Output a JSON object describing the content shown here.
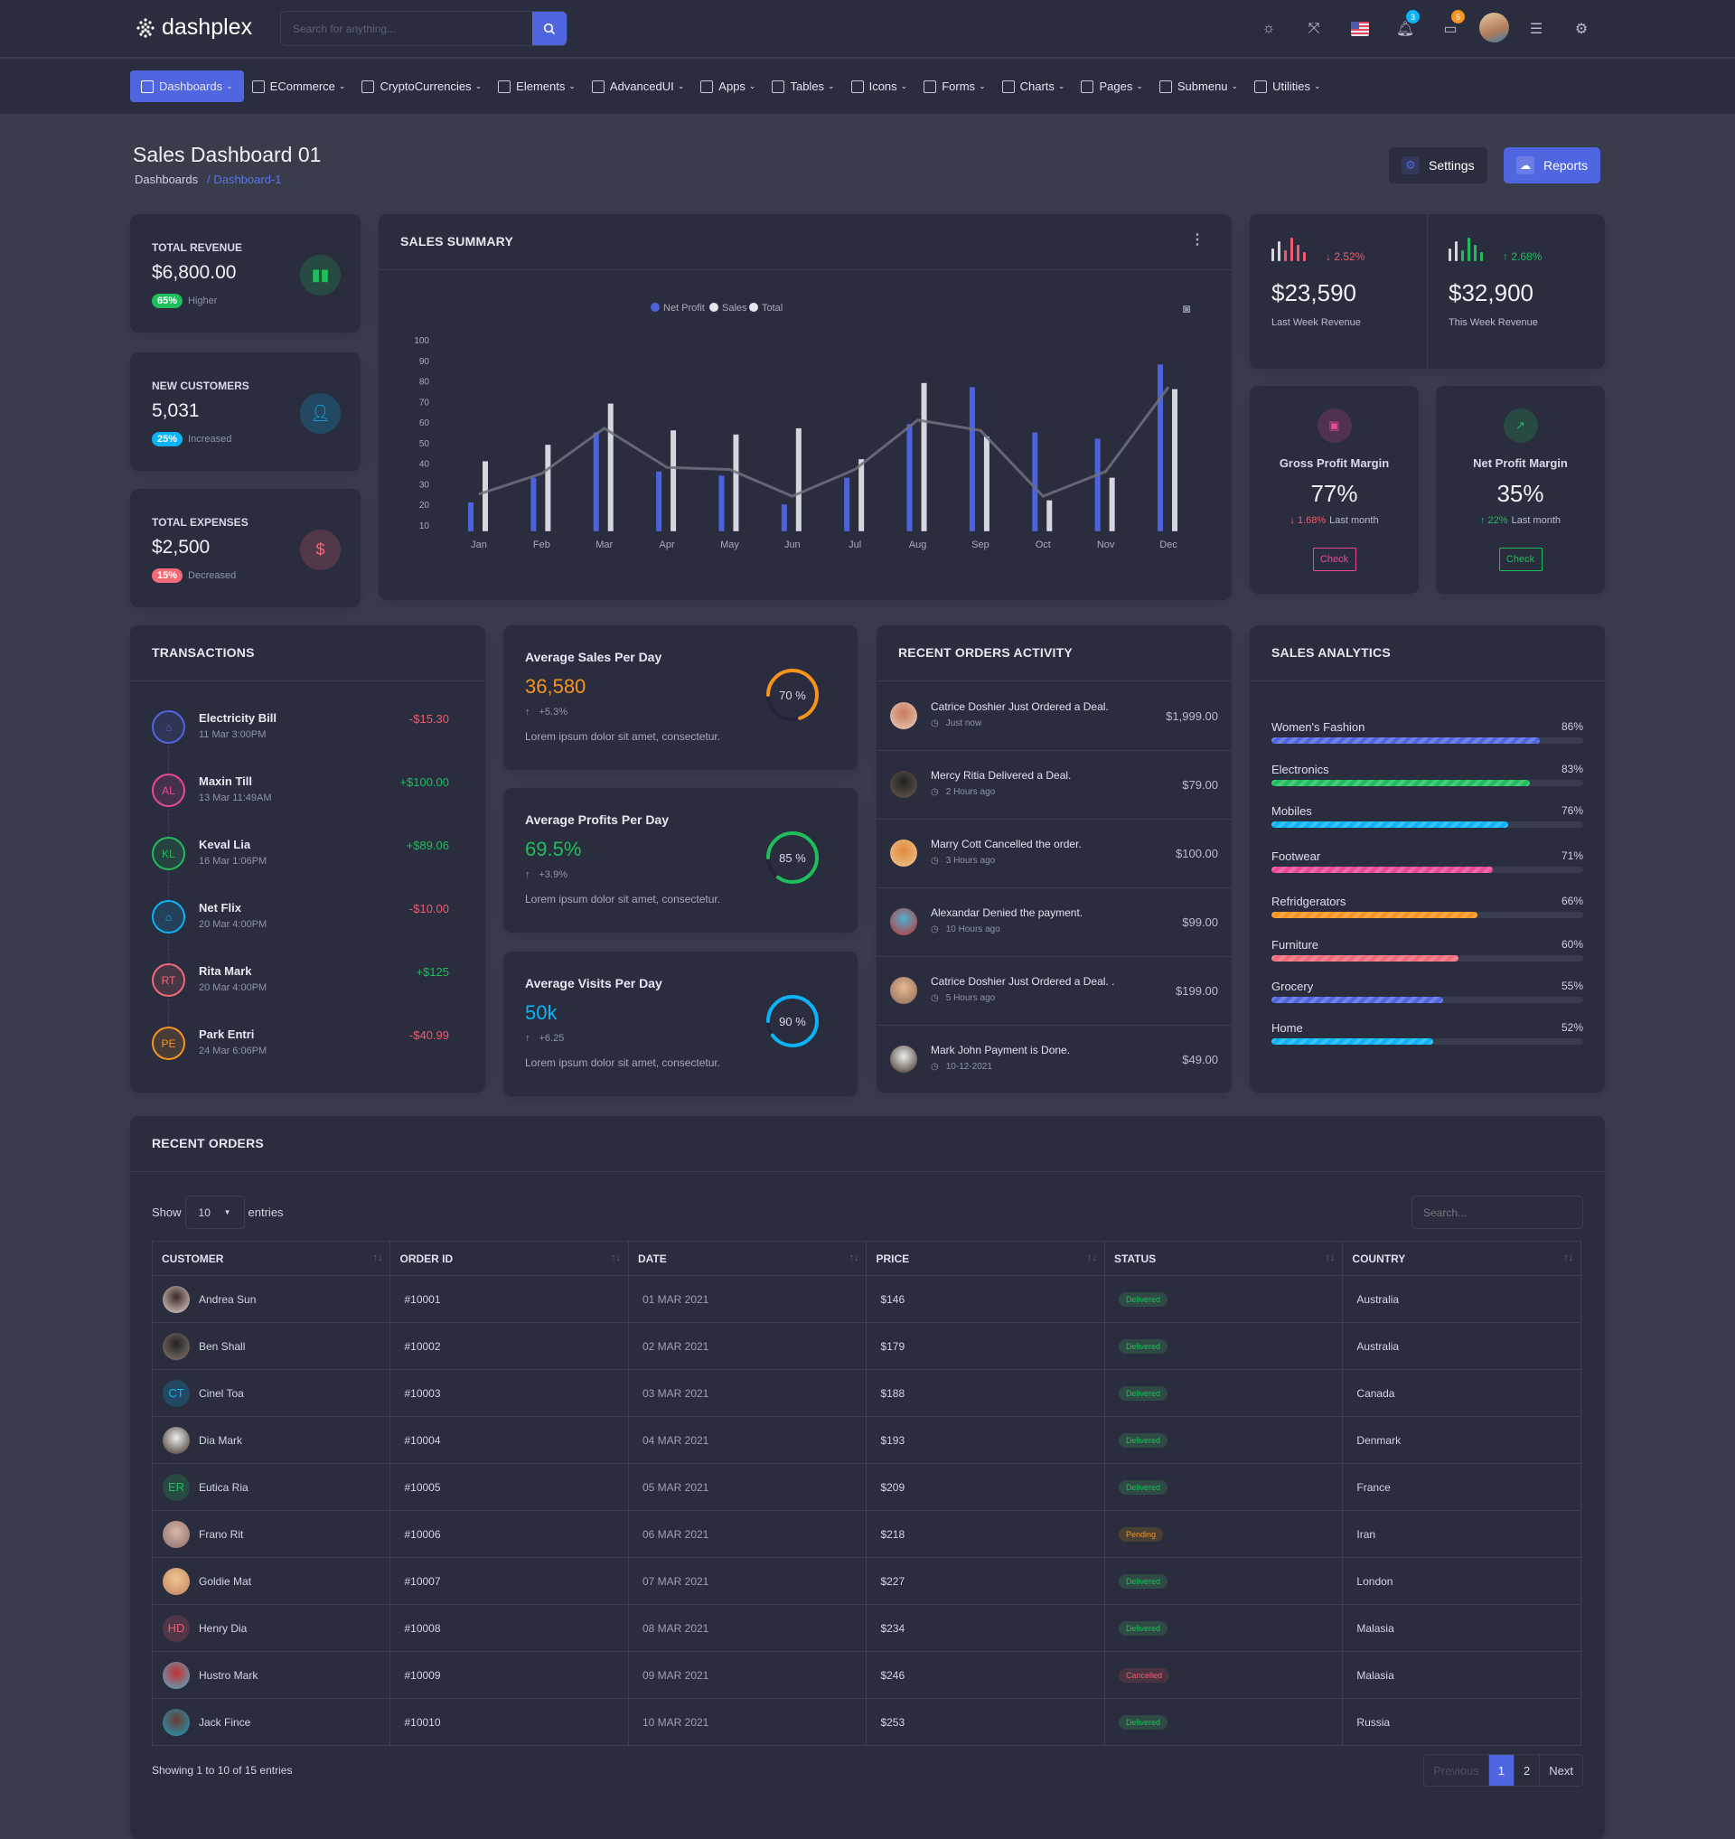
{
  "header": {
    "brand": "dashplex",
    "search_placeholder": "Search for anything...",
    "notifications_count": "3",
    "messages_count": "5"
  },
  "nav": [
    {
      "label": "Dashboards",
      "active": true
    },
    {
      "label": "ECommerce"
    },
    {
      "label": "CryptoCurrencies"
    },
    {
      "label": "Elements"
    },
    {
      "label": "AdvancedUI"
    },
    {
      "label": "Apps"
    },
    {
      "label": "Tables"
    },
    {
      "label": "Icons"
    },
    {
      "label": "Forms"
    },
    {
      "label": "Charts"
    },
    {
      "label": "Pages"
    },
    {
      "label": "Submenu"
    },
    {
      "label": "Utilities"
    }
  ],
  "page": {
    "title": "Sales Dashboard 01",
    "breadcrumb": [
      "Dashboards",
      "/ Dashboard-1"
    ],
    "settings_label": "Settings",
    "reports_label": "Reports"
  },
  "stats": [
    {
      "label": "TOTAL REVENUE",
      "value": "$6,800.00",
      "pill": "65%",
      "note": "Higher",
      "color": "#1fbd5b",
      "icon": "bar-chart-icon"
    },
    {
      "label": "NEW CUSTOMERS",
      "value": "5,031",
      "pill": "25%",
      "note": "Increased",
      "color": "#0bb4f7",
      "icon": "user-icon"
    },
    {
      "label": "TOTAL EXPENSES",
      "value": "$2,500",
      "pill": "15%",
      "note": "Decreased",
      "color": "#f06a78",
      "icon": "dollar-icon"
    }
  ],
  "sales_summary": {
    "title": "SALES SUMMARY"
  },
  "chart_data": {
    "type": "bar",
    "categories": [
      "Jan",
      "Feb",
      "Mar",
      "Apr",
      "May",
      "Jun",
      "Jul",
      "Aug",
      "Sep",
      "Oct",
      "Nov",
      "Dec"
    ],
    "series": [
      {
        "name": "Net Profit",
        "type": "bar",
        "color": "#4d63dc",
        "values": [
          21,
          33,
          55,
          36,
          34,
          20,
          33,
          59,
          77,
          55,
          52,
          88
        ]
      },
      {
        "name": "Sales",
        "type": "bar",
        "color": "#d5d7dd",
        "values": [
          41,
          49,
          69,
          56,
          54,
          57,
          42,
          79,
          53,
          22,
          33,
          76
        ]
      },
      {
        "name": "Total",
        "type": "line",
        "color": "#6e717f",
        "values": [
          25,
          35,
          57,
          38,
          37,
          24,
          37,
          61,
          56,
          24,
          36,
          77
        ]
      }
    ],
    "yticks": [
      "10",
      "20",
      "30",
      "40",
      "50",
      "60",
      "70",
      "80",
      "90",
      "100"
    ],
    "ylim": [
      7,
      100
    ],
    "legend": "top-center",
    "grid": false
  },
  "weekly": [
    {
      "change": "2.52%",
      "direction": "down",
      "value": "$23,590",
      "label": "Last Week Revenue",
      "color": "#f05a6e"
    },
    {
      "change": "2.68%",
      "direction": "up",
      "value": "$32,900",
      "label": "This Week Revenue",
      "color": "#1fbd5b"
    }
  ],
  "margins": [
    {
      "title": "Gross Profit Margin",
      "value": "77%",
      "change": "1.68%",
      "direction": "down",
      "suffix": "Last month",
      "button": "Check",
      "color": "#ec4899",
      "change_color": "#f05a6e",
      "icon": "wallet-icon"
    },
    {
      "title": "Net Profit Margin",
      "value": "35%",
      "change": "22%",
      "direction": "up",
      "suffix": "Last month",
      "button": "Check",
      "color": "#1fbd5b",
      "change_color": "#1fbd5b",
      "icon": "trending-up-icon"
    }
  ],
  "transactions": {
    "title": "TRANSACTIONS",
    "items": [
      {
        "initials": "",
        "icon": "home-icon",
        "name": "Electricity Bill",
        "date": "11 Mar 3:00PM",
        "amount": "-$15.30",
        "color": "#5066e0",
        "positive": false
      },
      {
        "initials": "AL",
        "name": "Maxin Till",
        "date": "13 Mar 11:49AM",
        "amount": "+$100.00",
        "color": "#ec4899",
        "positive": true
      },
      {
        "initials": "KL",
        "name": "Keval Lia",
        "date": "16 Mar 1:06PM",
        "amount": "+$89.06",
        "color": "#1fbd5b",
        "positive": true
      },
      {
        "initials": "",
        "icon": "home-icon",
        "name": "Net Flix",
        "date": "20 Mar 4:00PM",
        "amount": "-$10.00",
        "color": "#0bb4f7",
        "positive": false
      },
      {
        "initials": "RT",
        "name": "Rita Mark",
        "date": "20 Mar 4:00PM",
        "amount": "+$125",
        "color": "#f06a78",
        "positive": true
      },
      {
        "initials": "PE",
        "name": "Park Entri",
        "date": "24 Mar 6:06PM",
        "amount": "-$40.99",
        "color": "#f7931e",
        "positive": false
      }
    ]
  },
  "averages": [
    {
      "title": "Average Sales Per Day",
      "value": "36,580",
      "change": "+5.3%",
      "text": "Lorem ipsum dolor sit amet, consectetur.",
      "percent": 70,
      "percent_label": "70 %",
      "color": "#f7931e"
    },
    {
      "title": "Average Profits Per Day",
      "value": "69.5%",
      "change": "+3.9%",
      "text": "Lorem ipsum dolor sit amet, consectetur.",
      "percent": 85,
      "percent_label": "85 %",
      "color": "#1fbd5b"
    },
    {
      "title": "Average Visits Per Day",
      "value": "50k",
      "change": "+6.25",
      "text": "Lorem ipsum dolor sit amet, consectetur.",
      "percent": 90,
      "percent_label": "90 %",
      "color": "#0bb4f7"
    }
  ],
  "recent_activity": {
    "title": "RECENT ORDERS ACTIVITY",
    "items": [
      {
        "message": "Catrice Doshier Just Ordered a Deal.",
        "time": "Just now",
        "price": "$1,999.00"
      },
      {
        "message": "Mercy Ritia Delivered a Deal.",
        "time": "2 Hours ago",
        "price": "$79.00"
      },
      {
        "message": "Marry Cott Cancelled the order.",
        "time": "3 Hours ago",
        "price": "$100.00"
      },
      {
        "message": "Alexandar Denied the payment.",
        "time": "10 Hours ago",
        "price": "$99.00"
      },
      {
        "message": "Catrice Doshier Just Ordered a Deal. .",
        "time": "5 Hours ago",
        "price": "$199.00"
      },
      {
        "message": "Mark John Payment is Done.",
        "time": "10-12-2021",
        "price": "$49.00"
      }
    ]
  },
  "sales_analytics": {
    "title": "SALES ANALYTICS",
    "items": [
      {
        "label": "Women's Fashion",
        "percent_label": "86%",
        "percent": 86,
        "color": "#5066e0"
      },
      {
        "label": "Electronics",
        "percent_label": "83%",
        "percent": 83,
        "color": "#1fbd5b"
      },
      {
        "label": "Mobiles",
        "percent_label": "76%",
        "percent": 76,
        "color": "#0bb4f7"
      },
      {
        "label": "Footwear",
        "percent_label": "71%",
        "percent": 71,
        "color": "#ec4899"
      },
      {
        "label": "Refridgerators",
        "percent_label": "66%",
        "percent": 66,
        "color": "#f7931e"
      },
      {
        "label": "Furniture",
        "percent_label": "60%",
        "percent": 60,
        "color": "#f06a78"
      },
      {
        "label": "Grocery",
        "percent_label": "55%",
        "percent": 55,
        "color": "#5066e0"
      },
      {
        "label": "Home",
        "percent_label": "52%",
        "percent": 52,
        "color": "#0bb4f7"
      }
    ]
  },
  "recent_orders": {
    "title": "RECENT ORDERS",
    "show_label": "Show",
    "entries_label": "entries",
    "page_size": "10",
    "search_placeholder": "Search...",
    "columns": [
      "CUSTOMER",
      "ORDER ID",
      "DATE",
      "PRICE",
      "STATUS",
      "COUNTRY"
    ],
    "rows": [
      {
        "customer": "Andrea Sun",
        "initials": "",
        "order_id": "#10001",
        "date": "01 MAR 2021",
        "price": "$146",
        "status": "Delivered",
        "country": "Australia"
      },
      {
        "customer": "Ben Shall",
        "initials": "",
        "order_id": "#10002",
        "date": "02 MAR 2021",
        "price": "$179",
        "status": "Delivered",
        "country": "Australia"
      },
      {
        "customer": "Cinel Toa",
        "initials": "CT",
        "order_id": "#10003",
        "date": "03 MAR 2021",
        "price": "$188",
        "status": "Delivered",
        "country": "Canada"
      },
      {
        "customer": "Dia Mark",
        "initials": "",
        "order_id": "#10004",
        "date": "04 MAR 2021",
        "price": "$193",
        "status": "Delivered",
        "country": "Denmark"
      },
      {
        "customer": "Eutica Ria",
        "initials": "ER",
        "order_id": "#10005",
        "date": "05 MAR 2021",
        "price": "$209",
        "status": "Delivered",
        "country": "France"
      },
      {
        "customer": "Frano Rit",
        "initials": "",
        "order_id": "#10006",
        "date": "06 MAR 2021",
        "price": "$218",
        "status": "Pending",
        "country": "Iran"
      },
      {
        "customer": "Goldie Mat",
        "initials": "",
        "order_id": "#10007",
        "date": "07 MAR 2021",
        "price": "$227",
        "status": "Delivered",
        "country": "London"
      },
      {
        "customer": "Henry Dia",
        "initials": "HD",
        "order_id": "#10008",
        "date": "08 MAR 2021",
        "price": "$234",
        "status": "Delivered",
        "country": "Malasia"
      },
      {
        "customer": "Hustro Mark",
        "initials": "",
        "order_id": "#10009",
        "date": "09 MAR 2021",
        "price": "$246",
        "status": "Cancelled",
        "country": "Malasia"
      },
      {
        "customer": "Jack Fince",
        "initials": "",
        "order_id": "#10010",
        "date": "10 MAR 2021",
        "price": "$253",
        "status": "Delivered",
        "country": "Russia"
      }
    ],
    "footer": "Showing 1 to 10 of 15 entries",
    "pagination": {
      "previous": "Previous",
      "pages": [
        "1",
        "2"
      ],
      "current": "1",
      "next": "Next"
    }
  },
  "colors": {
    "primary": "#5066e0",
    "success": "#1fbd5b",
    "info": "#0bb4f7",
    "warning": "#f7931e",
    "danger": "#f05a6e"
  }
}
